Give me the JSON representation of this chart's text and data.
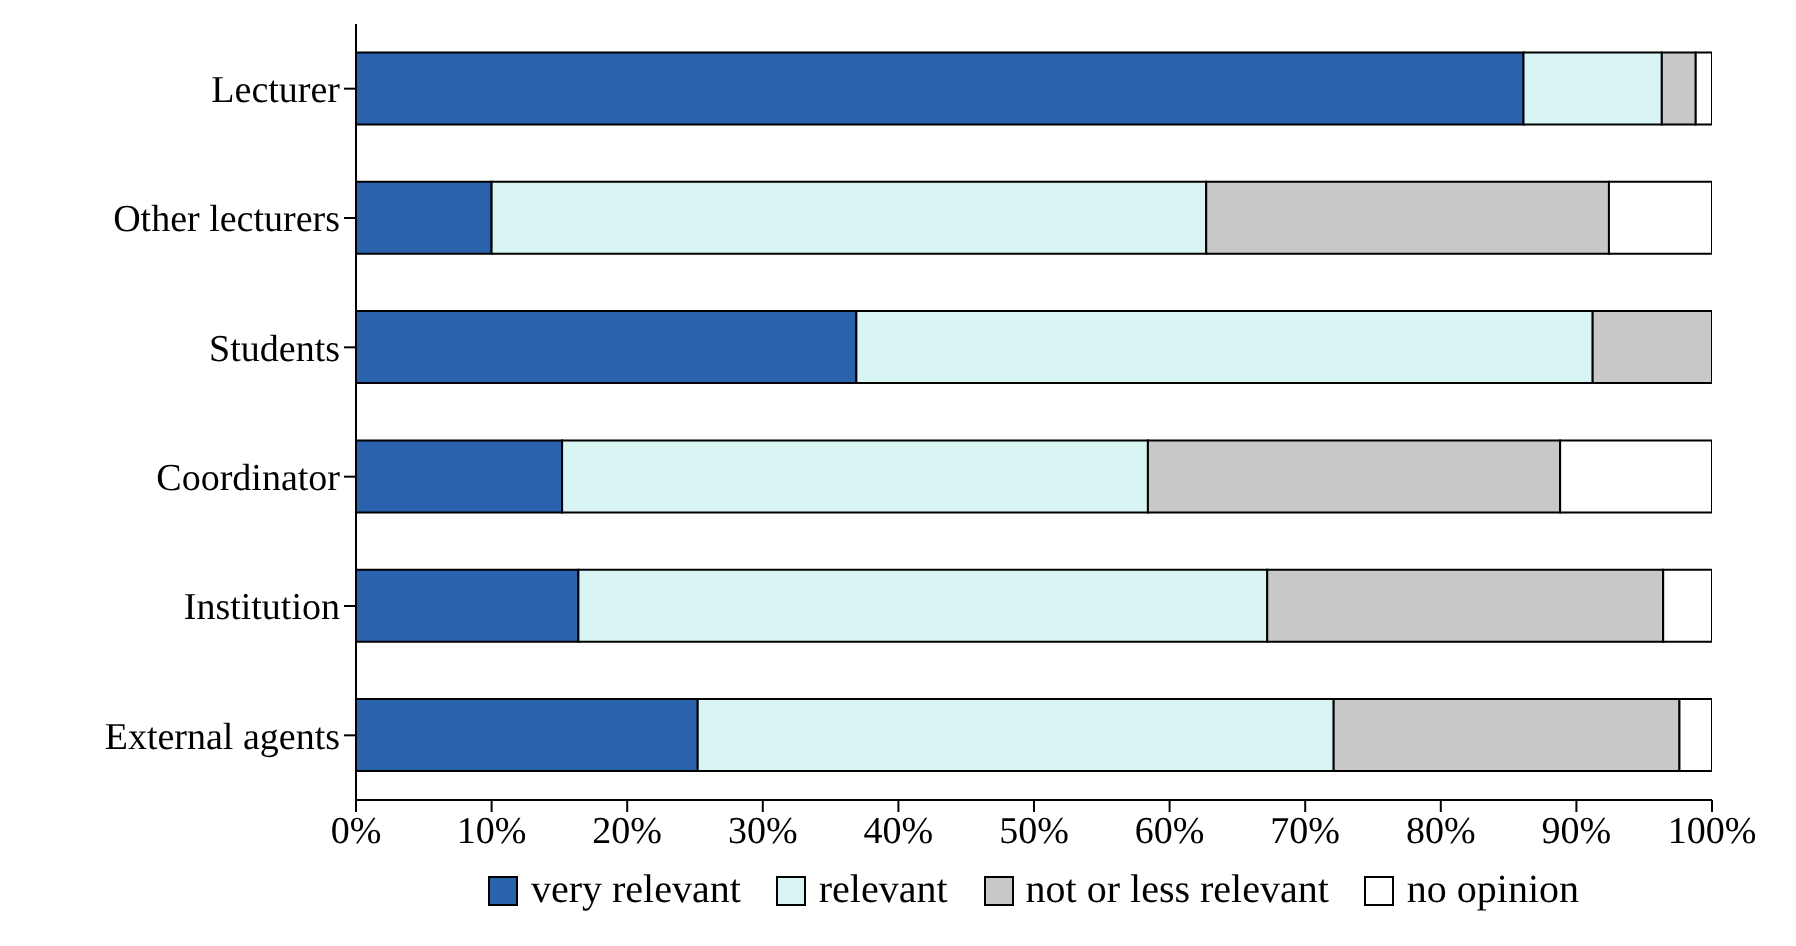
{
  "chart_data": {
    "type": "bar",
    "orientation": "horizontal",
    "stacked": true,
    "categories": [
      "Lecturer",
      "Other lecturers",
      "Students",
      "Coordinator",
      "Institution",
      "External agents"
    ],
    "series": [
      {
        "name": "very relevant",
        "color": "#2b62ad",
        "values": [
          86.1,
          10,
          36.9,
          15.2,
          16.4,
          25.2
        ]
      },
      {
        "name": "relevant",
        "color": "#d9f5f3",
        "values": [
          10.2,
          52.7,
          54.3,
          43.2,
          50.8,
          46.9
        ]
      },
      {
        "name": "not or less relevant",
        "color": "#c8c8c8",
        "values": [
          2.5,
          29.7,
          8.8,
          30.4,
          29.2,
          25.5
        ]
      },
      {
        "name": "no opinion",
        "color": "#ffffff",
        "values": [
          1.2,
          7.6,
          0,
          11.2,
          3.6,
          2.4
        ]
      }
    ],
    "xlim": [
      0,
      100
    ],
    "xticks": [
      {
        "value": 0,
        "label": "0%"
      },
      {
        "value": 10,
        "label": "10%"
      },
      {
        "value": 20,
        "label": "20%"
      },
      {
        "value": 30,
        "label": "30%"
      },
      {
        "value": 40,
        "label": "40%"
      },
      {
        "value": 50,
        "label": "50%"
      },
      {
        "value": 60,
        "label": "60%"
      },
      {
        "value": 70,
        "label": "70%"
      },
      {
        "value": 80,
        "label": "80%"
      },
      {
        "value": 90,
        "label": "90%"
      },
      {
        "value": 100,
        "label": "100%"
      }
    ],
    "grid": false,
    "legend": "bottom"
  }
}
